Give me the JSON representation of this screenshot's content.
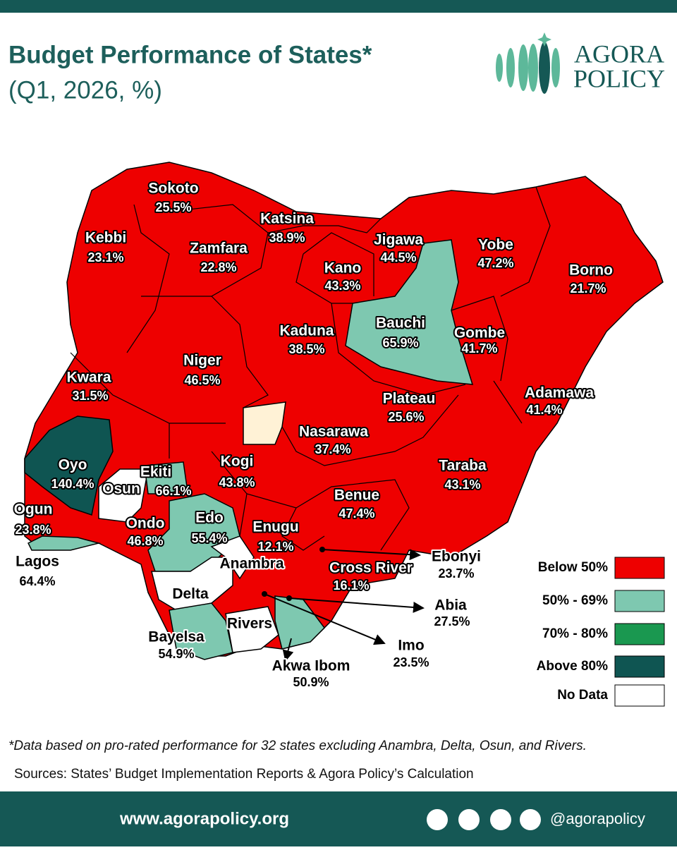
{
  "header": {
    "title": "Budget Performance of States*",
    "subtitle": "(Q1, 2026, %)",
    "logo": [
      "AGORA",
      "POLICY"
    ]
  },
  "map": {
    "states": [
      {
        "name": "Sokoto",
        "value": "25.5%",
        "category": 0
      },
      {
        "name": "Kebbi",
        "value": "23.1%",
        "category": 0
      },
      {
        "name": "Zamfara",
        "value": "22.8%",
        "category": 0
      },
      {
        "name": "Katsina",
        "value": "38.9%",
        "category": 0
      },
      {
        "name": "Jigawa",
        "value": "44.5%",
        "category": 0
      },
      {
        "name": "Kano",
        "value": "43.3%",
        "category": 0
      },
      {
        "name": "Yobe",
        "value": "47.2%",
        "category": 0
      },
      {
        "name": "Borno",
        "value": "21.7%",
        "category": 0
      },
      {
        "name": "Kaduna",
        "value": "38.5%",
        "category": 0
      },
      {
        "name": "Bauchi",
        "value": "65.9%",
        "category": 1
      },
      {
        "name": "Gombe",
        "value": "41.7%",
        "category": 0
      },
      {
        "name": "Niger",
        "value": "46.5%",
        "category": 0
      },
      {
        "name": "Kwara",
        "value": "31.5%",
        "category": 0
      },
      {
        "name": "Plateau",
        "value": "25.6%",
        "category": 0
      },
      {
        "name": "Adamawa",
        "value": "41.4%",
        "category": 0
      },
      {
        "name": "Nasarawa",
        "value": "37.4%",
        "category": 0
      },
      {
        "name": "Oyo",
        "value": "140.4%",
        "category": 3
      },
      {
        "name": "Kogi",
        "value": "43.8%",
        "category": 0
      },
      {
        "name": "Taraba",
        "value": "43.1%",
        "category": 0
      },
      {
        "name": "Ekiti",
        "value": "66.1%",
        "category": 1
      },
      {
        "name": "Osun",
        "category": 4
      },
      {
        "name": "Benue",
        "value": "47.4%",
        "category": 0
      },
      {
        "name": "Ogun",
        "value": "23.8%",
        "category": 0
      },
      {
        "name": "Ondo",
        "value": "46.8%",
        "category": 0
      },
      {
        "name": "Edo",
        "value": "55.4%",
        "category": 1
      },
      {
        "name": "Enugu",
        "value": "12.1%",
        "category": 0
      },
      {
        "name": "Ebonyi",
        "value": "23.7%",
        "category": 0
      },
      {
        "name": "Lagos",
        "value": "64.4%",
        "category": 1
      },
      {
        "name": "Anambra",
        "category": 4
      },
      {
        "name": "Cross River",
        "value": "16.1%",
        "category": 0
      },
      {
        "name": "Delta",
        "category": 4
      },
      {
        "name": "Abia",
        "value": "27.5%",
        "category": 0
      },
      {
        "name": "Rivers",
        "category": 4
      },
      {
        "name": "Bayelsa",
        "value": "54.9%",
        "category": 1
      },
      {
        "name": "Imo",
        "value": "23.5%",
        "category": 0
      },
      {
        "name": "Akwa Ibom",
        "value": "50.9%",
        "category": 1
      }
    ],
    "legend": [
      {
        "label": "Below 50%",
        "color": "#ee0000"
      },
      {
        "label": "50%  - 69%",
        "color": "#7ec8b0"
      },
      {
        "label": "70%  - 80%",
        "color": "#1a9850"
      },
      {
        "label": "Above 80%",
        "color": "#0f5552"
      },
      {
        "label": "No Data",
        "color": "#ffffff"
      }
    ]
  },
  "footnote": "*Data based on pro-rated performance for 32 states excluding Anambra, Delta, Osun,  and Rivers.",
  "sources": "Sources: States’ Budget Implementation Reports & Agora Policy’s Calculation",
  "footer": {
    "url": "www.agorapolicy.org",
    "handle": "@agorapolicy"
  }
}
